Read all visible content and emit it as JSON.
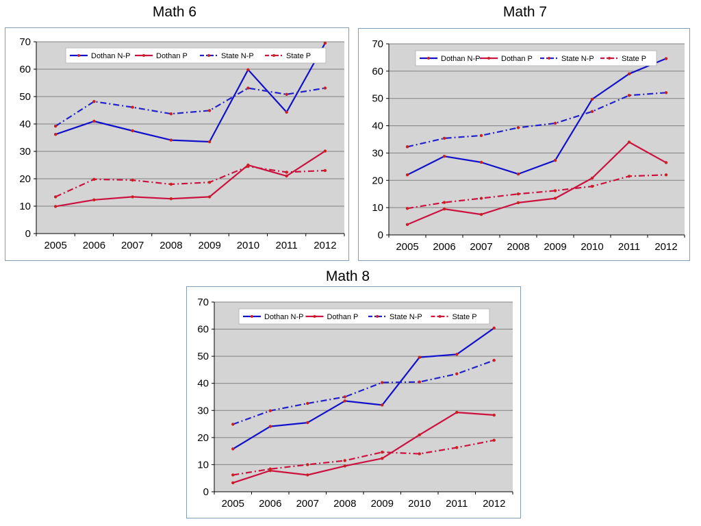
{
  "colors": {
    "plot_bg": "#d4d4d4",
    "grid": "#808080",
    "dothan_np": "#1010cc",
    "dothan_p": "#cc1040",
    "state_np": "#2020cc",
    "state_p": "#cc1040",
    "marker": "#cc2020"
  },
  "chart_data": [
    {
      "type": "line",
      "title": "Math 6",
      "categories": [
        "2005",
        "2006",
        "2007",
        "2008",
        "2009",
        "2010",
        "2011",
        "2012"
      ],
      "ylim": [
        0,
        70
      ],
      "yticks": [
        0,
        10,
        20,
        30,
        40,
        50,
        60,
        70
      ],
      "grid": true,
      "legend": "top",
      "series": [
        {
          "name": "Dothan N-P",
          "style": "solid",
          "color": "#1010cc",
          "values": [
            36.2,
            41.0,
            37.5,
            34.1,
            33.5,
            59.8,
            44.3,
            69.5
          ]
        },
        {
          "name": "Dothan P",
          "style": "solid",
          "color": "#cc1040",
          "values": [
            9.9,
            12.3,
            13.4,
            12.7,
            13.4,
            25.0,
            21.0,
            30.1
          ]
        },
        {
          "name": "State N-P",
          "style": "dashdot",
          "color": "#2020cc",
          "values": [
            39.2,
            48.2,
            46.1,
            43.7,
            44.9,
            53.1,
            50.8,
            53.1
          ]
        },
        {
          "name": "State P",
          "style": "dashdot",
          "color": "#cc1040",
          "values": [
            13.4,
            19.8,
            19.5,
            18.0,
            18.7,
            24.5,
            22.4,
            23.0
          ]
        }
      ]
    },
    {
      "type": "line",
      "title": "Math 7",
      "categories": [
        "2005",
        "2006",
        "2007",
        "2008",
        "2009",
        "2010",
        "2011",
        "2012"
      ],
      "ylim": [
        0,
        70
      ],
      "yticks": [
        0,
        10,
        20,
        30,
        40,
        50,
        60,
        70
      ],
      "grid": true,
      "legend": "top",
      "series": [
        {
          "name": "Dothan N-P",
          "style": "solid",
          "color": "#1010cc",
          "values": [
            22.0,
            28.8,
            26.6,
            22.3,
            27.3,
            49.7,
            59.0,
            64.6
          ]
        },
        {
          "name": "Dothan P",
          "style": "solid",
          "color": "#cc1040",
          "values": [
            3.8,
            9.5,
            7.5,
            11.8,
            13.4,
            20.8,
            34.0,
            26.5
          ]
        },
        {
          "name": "State N-P",
          "style": "dashdot",
          "color": "#2020cc",
          "values": [
            32.3,
            35.4,
            36.4,
            39.3,
            40.9,
            45.2,
            51.1,
            52.1
          ]
        },
        {
          "name": "State P",
          "style": "dashdot",
          "color": "#cc1040",
          "values": [
            9.7,
            11.9,
            13.4,
            15.0,
            16.2,
            17.8,
            21.5,
            22.0
          ]
        }
      ]
    },
    {
      "type": "line",
      "title": "Math 8",
      "categories": [
        "2005",
        "2006",
        "2007",
        "2008",
        "2009",
        "2010",
        "2011",
        "2012"
      ],
      "ylim": [
        0,
        70
      ],
      "yticks": [
        0,
        10,
        20,
        30,
        40,
        50,
        60,
        70
      ],
      "grid": true,
      "legend": "top",
      "series": [
        {
          "name": "Dothan N-P",
          "style": "solid",
          "color": "#1010cc",
          "values": [
            15.8,
            24.1,
            25.5,
            33.5,
            32.0,
            49.6,
            50.7,
            60.4
          ]
        },
        {
          "name": "Dothan P",
          "style": "solid",
          "color": "#cc1040",
          "values": [
            3.3,
            7.8,
            6.2,
            9.5,
            12.3,
            21.0,
            29.3,
            28.3
          ]
        },
        {
          "name": "State N-P",
          "style": "dashdot",
          "color": "#2020cc",
          "values": [
            24.9,
            29.9,
            32.6,
            35.0,
            40.3,
            40.5,
            43.5,
            48.5
          ]
        },
        {
          "name": "State P",
          "style": "dashdot",
          "color": "#cc1040",
          "values": [
            6.2,
            8.4,
            10.0,
            11.5,
            14.6,
            14.0,
            16.3,
            19.0
          ]
        }
      ]
    }
  ]
}
